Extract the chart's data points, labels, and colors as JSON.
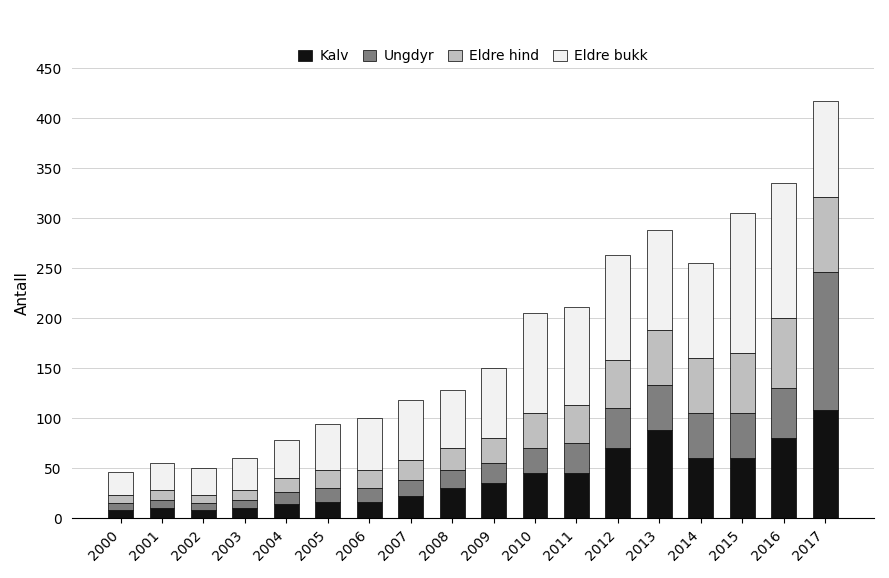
{
  "years": [
    2000,
    2001,
    2002,
    2003,
    2004,
    2005,
    2006,
    2007,
    2008,
    2009,
    2010,
    2011,
    2012,
    2013,
    2014,
    2015,
    2016,
    2017
  ],
  "kalv": [
    8,
    10,
    8,
    10,
    14,
    16,
    16,
    22,
    30,
    35,
    45,
    45,
    70,
    88,
    60,
    60,
    80,
    108
  ],
  "ungdyr": [
    7,
    8,
    7,
    8,
    12,
    14,
    14,
    16,
    18,
    20,
    25,
    30,
    40,
    45,
    45,
    45,
    50,
    138
  ],
  "eldre_hind": [
    8,
    10,
    8,
    10,
    14,
    18,
    18,
    20,
    22,
    25,
    35,
    38,
    48,
    55,
    55,
    60,
    70,
    75
  ],
  "eldre_bukk": [
    23,
    27,
    27,
    32,
    38,
    46,
    52,
    60,
    58,
    70,
    100,
    98,
    105,
    100,
    95,
    140,
    135,
    96
  ],
  "colors": {
    "kalv": "#111111",
    "ungdyr": "#7f7f7f",
    "eldre_hind": "#bfbfbf",
    "eldre_bukk": "#f2f2f2"
  },
  "legend_labels": [
    "Kalv",
    "Ungdyr",
    "Eldre hind",
    "Eldre bukk"
  ],
  "ylabel": "Antall",
  "ylim": [
    0,
    450
  ],
  "yticks": [
    0,
    50,
    100,
    150,
    200,
    250,
    300,
    350,
    400,
    450
  ]
}
